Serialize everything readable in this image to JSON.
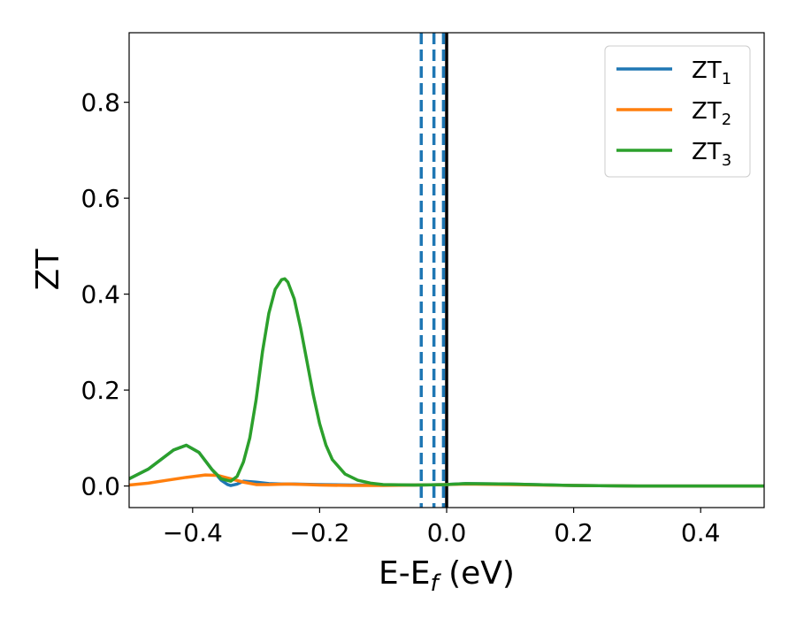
{
  "chart_data": {
    "type": "line",
    "xlabel": "E-E",
    "xlabel_sub": "f",
    "xlabel_unit": " (eV)",
    "ylabel": "ZT",
    "xlim": [
      -0.5,
      0.5
    ],
    "ylim": [
      -0.045,
      0.945
    ],
    "grid": false,
    "legend_position": "top-right",
    "x_ticks": [
      -0.4,
      -0.2,
      0.0,
      0.2,
      0.4
    ],
    "x_tick_labels": [
      "−0.4",
      "−0.2",
      "0.0",
      "0.2",
      "0.4"
    ],
    "y_ticks": [
      0.0,
      0.2,
      0.4,
      0.6,
      0.8
    ],
    "y_tick_labels": [
      "0.0",
      "0.2",
      "0.4",
      "0.6",
      "0.8"
    ],
    "vertical_lines": [
      {
        "x": -0.04,
        "style": "dashed",
        "color": "#1f77b4"
      },
      {
        "x": -0.02,
        "style": "dashed",
        "color": "#1f77b4"
      },
      {
        "x": -0.005,
        "style": "dashed",
        "color": "#1f77b4"
      },
      {
        "x": 0.0,
        "style": "solid",
        "color": "#000000"
      }
    ],
    "series": [
      {
        "name": "ZT",
        "name_sub": "1",
        "color": "#1f77b4",
        "x": [
          -0.5,
          -0.47,
          -0.45,
          -0.43,
          -0.41,
          -0.39,
          -0.37,
          -0.355,
          -0.345,
          -0.34,
          -0.33,
          -0.32,
          -0.3,
          -0.28,
          -0.26,
          -0.24,
          -0.2,
          -0.15,
          -0.1,
          -0.05,
          0.0,
          0.03,
          0.1,
          0.2,
          0.3,
          0.4,
          0.5
        ],
        "y": [
          0.015,
          0.035,
          0.055,
          0.075,
          0.085,
          0.07,
          0.035,
          0.012,
          0.003,
          0.001,
          0.004,
          0.01,
          0.008,
          0.005,
          0.004,
          0.004,
          0.003,
          0.002,
          0.002,
          0.002,
          0.003,
          0.005,
          0.004,
          0.001,
          0.0,
          0.0,
          0.0
        ]
      },
      {
        "name": "ZT",
        "name_sub": "2",
        "color": "#ff7f0e",
        "x": [
          -0.5,
          -0.47,
          -0.44,
          -0.41,
          -0.38,
          -0.36,
          -0.34,
          -0.32,
          -0.3,
          -0.28,
          -0.25,
          -0.22,
          -0.2,
          -0.15,
          -0.1,
          -0.05,
          0.0,
          0.03,
          0.1,
          0.2,
          0.3,
          0.4,
          0.5
        ],
        "y": [
          0.002,
          0.006,
          0.012,
          0.018,
          0.023,
          0.022,
          0.015,
          0.008,
          0.003,
          0.003,
          0.004,
          0.003,
          0.002,
          0.001,
          0.001,
          0.002,
          0.003,
          0.004,
          0.003,
          0.001,
          0.0,
          0.0,
          0.0
        ]
      },
      {
        "name": "ZT",
        "name_sub": "3",
        "color": "#2ca02c",
        "x": [
          -0.5,
          -0.47,
          -0.45,
          -0.43,
          -0.41,
          -0.39,
          -0.37,
          -0.355,
          -0.34,
          -0.33,
          -0.32,
          -0.31,
          -0.3,
          -0.29,
          -0.28,
          -0.27,
          -0.26,
          -0.255,
          -0.25,
          -0.24,
          -0.23,
          -0.22,
          -0.21,
          -0.2,
          -0.19,
          -0.18,
          -0.16,
          -0.14,
          -0.12,
          -0.1,
          -0.05,
          0.0,
          0.03,
          0.1,
          0.2,
          0.3,
          0.4,
          0.5
        ],
        "y": [
          0.015,
          0.035,
          0.055,
          0.075,
          0.085,
          0.07,
          0.035,
          0.015,
          0.01,
          0.02,
          0.05,
          0.1,
          0.18,
          0.28,
          0.36,
          0.41,
          0.43,
          0.432,
          0.425,
          0.39,
          0.33,
          0.26,
          0.19,
          0.13,
          0.085,
          0.055,
          0.025,
          0.012,
          0.006,
          0.003,
          0.002,
          0.003,
          0.005,
          0.004,
          0.001,
          0.0,
          0.0,
          0.0
        ]
      }
    ]
  }
}
